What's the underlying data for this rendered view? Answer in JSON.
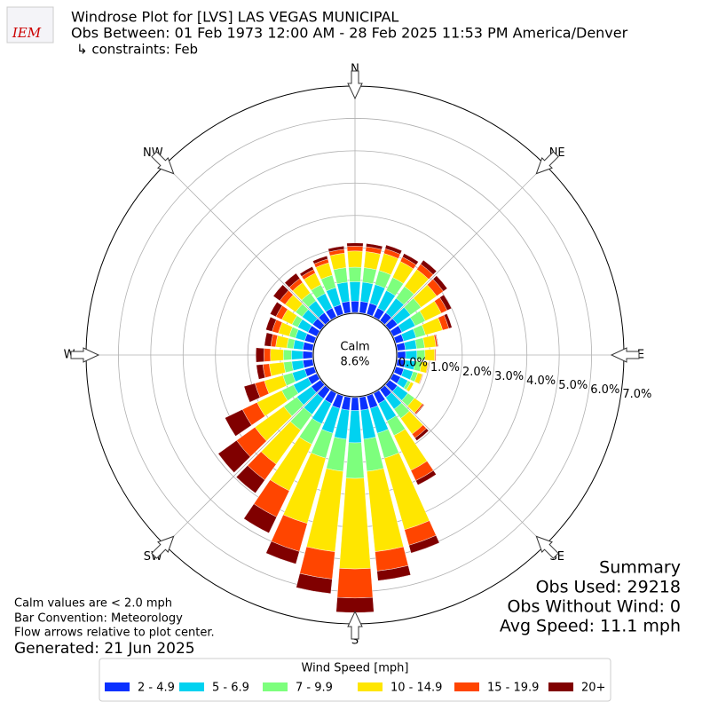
{
  "chart_data": {
    "type": "windrose",
    "logo_text": "IEM",
    "title": "Windrose Plot for [LVS] LAS VEGAS MUNICIPAL",
    "subtitle": "Obs Between: 01 Feb 1973 12:00 AM - 28 Feb 2025 11:53 PM America/Denver",
    "constraints": "↳ constraints: Feb",
    "x": [
      0,
      10,
      20,
      30,
      40,
      50,
      60,
      70,
      80,
      90,
      100,
      110,
      120,
      130,
      140,
      150,
      160,
      170,
      180,
      190,
      200,
      210,
      220,
      230,
      240,
      250,
      260,
      270,
      280,
      290,
      300,
      310,
      320,
      330,
      340,
      350
    ],
    "compass": [
      {
        "value": 0,
        "label": "N"
      },
      {
        "value": 45,
        "label": "NE"
      },
      {
        "value": 90,
        "label": "E"
      },
      {
        "value": 135,
        "label": "SE"
      },
      {
        "value": 180,
        "label": "S"
      },
      {
        "value": 225,
        "label": "SW"
      },
      {
        "value": 270,
        "label": "W"
      },
      {
        "value": 315,
        "label": "NW"
      }
    ],
    "rlim": [
      0,
      7
    ],
    "rticks": [
      {
        "value": 0,
        "label": "0.0%"
      },
      {
        "value": 1,
        "label": "1.0%"
      },
      {
        "value": 2,
        "label": "2.0%"
      },
      {
        "value": 3,
        "label": "3.0%"
      },
      {
        "value": 4,
        "label": "4.0%"
      },
      {
        "value": 5,
        "label": "5.0%"
      },
      {
        "value": 6,
        "label": "6.0%"
      },
      {
        "value": 7,
        "label": "7.0%"
      }
    ],
    "calm_label": "Calm",
    "calm_value_label": "8.6%",
    "legend_title": "Wind Speed [mph]",
    "series": [
      {
        "name": "2 - 4.9",
        "color": "#0a31ff",
        "values": [
          0.35,
          0.35,
          0.35,
          0.3,
          0.3,
          0.3,
          0.3,
          0.25,
          0.25,
          0.25,
          0.25,
          0.25,
          0.25,
          0.3,
          0.3,
          0.35,
          0.4,
          0.4,
          0.4,
          0.4,
          0.4,
          0.35,
          0.35,
          0.35,
          0.3,
          0.3,
          0.3,
          0.3,
          0.3,
          0.3,
          0.3,
          0.3,
          0.3,
          0.3,
          0.3,
          0.35
        ]
      },
      {
        "name": "5 - 6.9",
        "color": "#00d2f0",
        "values": [
          0.6,
          0.6,
          0.6,
          0.6,
          0.55,
          0.5,
          0.45,
          0.4,
          0.35,
          0.35,
          0.3,
          0.3,
          0.25,
          0.4,
          0.45,
          0.6,
          0.8,
          0.9,
          1.0,
          0.9,
          0.8,
          0.7,
          0.6,
          0.55,
          0.5,
          0.4,
          0.35,
          0.35,
          0.3,
          0.3,
          0.35,
          0.4,
          0.45,
          0.5,
          0.55,
          0.6
        ]
      },
      {
        "name": "7 - 9.9",
        "color": "#7dff7d",
        "values": [
          0.45,
          0.45,
          0.45,
          0.45,
          0.45,
          0.4,
          0.35,
          0.3,
          0.25,
          0.25,
          0.2,
          0.15,
          0.1,
          0.25,
          0.35,
          0.5,
          0.8,
          1.0,
          1.1,
          1.0,
          0.8,
          0.7,
          0.6,
          0.5,
          0.4,
          0.3,
          0.25,
          0.25,
          0.2,
          0.2,
          0.2,
          0.25,
          0.3,
          0.3,
          0.4,
          0.45
        ]
      },
      {
        "name": "10 - 14.9",
        "color": "#ffe600",
        "values": [
          0.5,
          0.5,
          0.55,
          0.55,
          0.65,
          0.6,
          0.55,
          0.55,
          0.35,
          0.3,
          0.2,
          0.15,
          0.1,
          0.3,
          0.6,
          1.2,
          2.3,
          2.5,
          2.8,
          2.5,
          2.1,
          1.6,
          1.3,
          1.1,
          0.85,
          0.6,
          0.45,
          0.4,
          0.35,
          0.35,
          0.35,
          0.4,
          0.4,
          0.4,
          0.4,
          0.45
        ]
      },
      {
        "name": "15 - 19.9",
        "color": "#ff4500",
        "values": [
          0.15,
          0.15,
          0.15,
          0.15,
          0.2,
          0.25,
          0.2,
          0.2,
          0.05,
          0.03,
          0.02,
          0.02,
          0.01,
          0.05,
          0.15,
          0.35,
          0.5,
          0.6,
          0.9,
          0.85,
          0.9,
          0.9,
          0.6,
          0.7,
          0.5,
          0.3,
          0.2,
          0.2,
          0.15,
          0.2,
          0.2,
          0.2,
          0.15,
          0.12,
          0.12,
          0.12
        ]
      },
      {
        "name": "20+",
        "color": "#800000",
        "values": [
          0.1,
          0.1,
          0.12,
          0.12,
          0.15,
          0.15,
          0.15,
          0.1,
          0.02,
          0.01,
          0.01,
          0.01,
          0,
          0.02,
          0.1,
          0.15,
          0.25,
          0.3,
          0.45,
          0.45,
          0.4,
          0.55,
          0.5,
          0.7,
          0.6,
          0.35,
          0.2,
          0.25,
          0.2,
          0.2,
          0.2,
          0.25,
          0.2,
          0.1,
          0.1,
          0.1
        ]
      }
    ],
    "notes": [
      "Calm values are < 2.0 mph",
      "Bar Convention: Meteorology",
      "Flow arrows relative to plot center."
    ],
    "generated": "Generated: 21 Jun 2025",
    "summary": [
      "Summary",
      "Obs Used: 29218",
      "Obs Without Wind: 0",
      "Avg Speed: 11.1 mph"
    ]
  }
}
